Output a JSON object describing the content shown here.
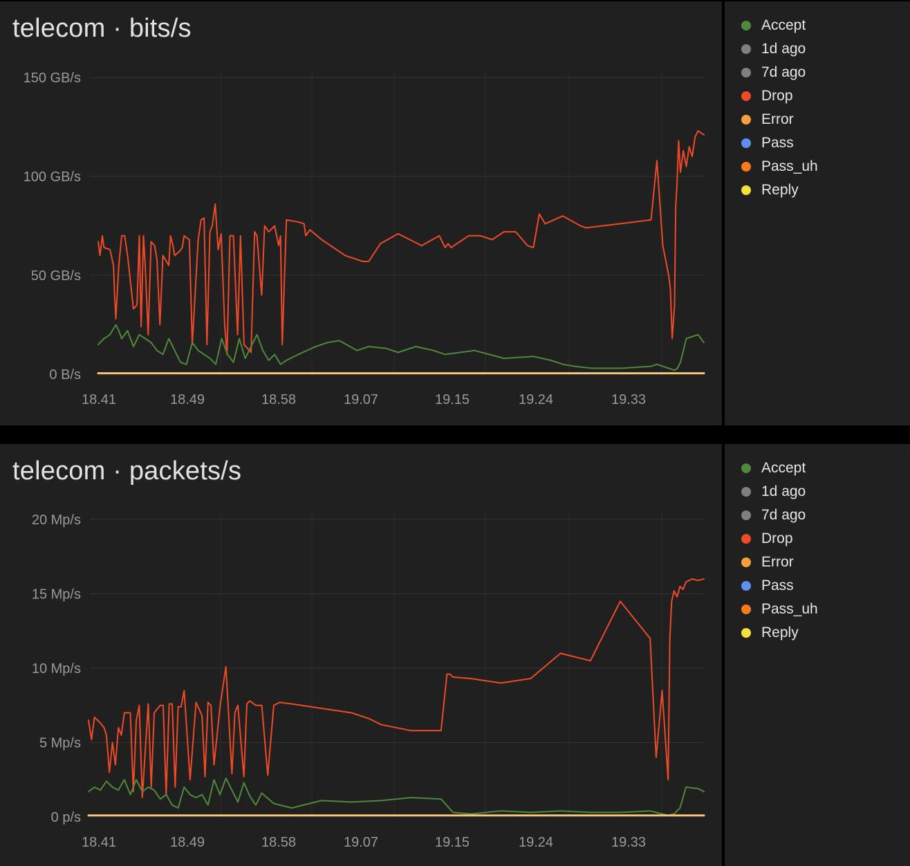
{
  "chart_data": [
    {
      "type": "line",
      "title": "telecom · bits/s",
      "yticks": [
        {
          "v": 0,
          "label": "0 B/s"
        },
        {
          "v": 50,
          "label": "50 GB/s"
        },
        {
          "v": 100,
          "label": "100 GB/s"
        },
        {
          "v": 150,
          "label": "150 GB/s"
        }
      ],
      "ylim": [
        0,
        150
      ],
      "xlim": [
        18.41,
        19.44
      ],
      "xticks": [
        "18.41",
        "18.49",
        "18.58",
        "19.07",
        "19.15",
        "19.24",
        "19.33"
      ],
      "grid": true,
      "legend_position": "right",
      "legend": [
        {
          "name": "Accept",
          "color": "#4e8a3a"
        },
        {
          "name": "1d ago",
          "color": "#808080"
        },
        {
          "name": "7d ago",
          "color": "#808080"
        },
        {
          "name": "Drop",
          "color": "#ef4a28"
        },
        {
          "name": "Error",
          "color": "#f6a03c"
        },
        {
          "name": "Pass",
          "color": "#5f8ff0"
        },
        {
          "name": "Pass_uh",
          "color": "#f77c1c"
        },
        {
          "name": "Reply",
          "color": "#f6e03a"
        }
      ],
      "series": [
        {
          "name": "Drop",
          "color": "#ef4a28",
          "x": [
            18.41,
            18.413,
            18.417,
            18.42,
            18.43,
            18.436,
            18.438,
            18.44,
            18.445,
            18.45,
            18.455,
            18.46,
            18.47,
            18.476,
            18.48,
            18.483,
            18.487,
            18.49,
            18.495,
            18.5,
            18.506,
            18.51,
            18.515,
            18.52,
            18.53,
            18.533,
            18.537,
            18.54,
            18.548,
            18.553,
            18.556,
            18.565,
            18.57,
            18.58,
            18.585,
            18.59,
            18.595,
            18.6,
            18.604,
            18.609,
            18.614,
            18.619,
            18.625,
            18.629,
            18.634,
            18.64,
            18.647,
            18.652,
            18.658,
            18.67,
            18.676,
            18.68,
            18.688,
            18.693,
            18.7,
            18.71,
            18.717,
            18.72,
            18.723,
            18.73,
            18.75,
            18.76,
            18.763,
            18.77,
            18.79,
            18.8,
            18.83,
            18.86,
            18.87,
            18.89,
            18.92,
            18.96,
            18.99,
            19.0,
            19.005,
            19.01,
            19.04,
            19.06,
            19.08,
            19.1,
            19.12,
            19.14,
            19.15,
            19.16,
            19.17,
            19.2,
            19.23,
            19.24,
            19.35,
            19.36,
            19.37,
            19.38,
            19.383,
            19.386,
            19.39,
            19.392,
            19.394,
            19.397,
            19.4,
            19.405,
            19.41,
            19.415,
            19.42,
            19.425,
            19.43,
            19.44
          ],
          "values": [
            67,
            60,
            70,
            64,
            63,
            55,
            40,
            28,
            55,
            70,
            70,
            60,
            33,
            35,
            70,
            24,
            70,
            55,
            20,
            67,
            65,
            58,
            25,
            60,
            55,
            70,
            65,
            60,
            62,
            64,
            70,
            68,
            15,
            68,
            78,
            79,
            15,
            72,
            75,
            86,
            63,
            71,
            25,
            10,
            70,
            70,
            20,
            70,
            15,
            11,
            72,
            70,
            40,
            75,
            72,
            75,
            65,
            70,
            15,
            78,
            77,
            76,
            70,
            73,
            68,
            66,
            60,
            57,
            57,
            66,
            71,
            65,
            70,
            64,
            66,
            64,
            70,
            70,
            68,
            72,
            72,
            65,
            64,
            81,
            76,
            80,
            75,
            74,
            78,
            108,
            65,
            50,
            43,
            18,
            35,
            85,
            95,
            118,
            102,
            113,
            105,
            115,
            110,
            120,
            123,
            121
          ]
        },
        {
          "name": "Accept",
          "color": "#4e8a3a",
          "x": [
            18.41,
            18.42,
            18.43,
            18.44,
            18.445,
            18.45,
            18.46,
            18.47,
            18.48,
            18.49,
            18.5,
            18.51,
            18.52,
            18.53,
            18.54,
            18.55,
            18.56,
            18.57,
            18.58,
            18.59,
            18.6,
            18.61,
            18.62,
            18.63,
            18.64,
            18.65,
            18.66,
            18.67,
            18.68,
            18.69,
            18.7,
            18.71,
            18.72,
            18.73,
            18.75,
            18.78,
            18.8,
            18.82,
            18.85,
            18.87,
            18.9,
            18.92,
            18.95,
            18.98,
            19.0,
            19.05,
            19.1,
            19.15,
            19.18,
            19.2,
            19.22,
            19.25,
            19.3,
            19.35,
            19.36,
            19.38,
            19.39,
            19.395,
            19.4,
            19.41,
            19.43,
            19.44
          ],
          "values": [
            15,
            18,
            20,
            25,
            22,
            18,
            22,
            14,
            20,
            18,
            16,
            12,
            10,
            18,
            12,
            6,
            5,
            16,
            12,
            10,
            8,
            5,
            18,
            10,
            6,
            18,
            8,
            14,
            20,
            12,
            7,
            10,
            5,
            7,
            10,
            14,
            16,
            17,
            12,
            14,
            13,
            11,
            14,
            12,
            10,
            12,
            8,
            9,
            7,
            5,
            4,
            3,
            3,
            4,
            5,
            3,
            2,
            3,
            6,
            18,
            20,
            16
          ]
        },
        {
          "name": "Reply",
          "color": "#f6c47a",
          "x": [
            18.41,
            19.44
          ],
          "values": [
            0.5,
            0.5
          ]
        }
      ]
    },
    {
      "type": "line",
      "title": "telecom · packets/s",
      "yticks": [
        {
          "v": 0,
          "label": "0 p/s"
        },
        {
          "v": 5,
          "label": "5 Mp/s"
        },
        {
          "v": 10,
          "label": "10 Mp/s"
        },
        {
          "v": 15,
          "label": "15 Mp/s"
        },
        {
          "v": 20,
          "label": "20 Mp/s"
        }
      ],
      "ylim": [
        0,
        20
      ],
      "xlim": [
        18.41,
        19.44
      ],
      "xticks": [
        "18.41",
        "18.49",
        "18.58",
        "19.07",
        "19.15",
        "19.24",
        "19.33"
      ],
      "grid": true,
      "legend_position": "right",
      "legend": [
        {
          "name": "Accept",
          "color": "#4e8a3a"
        },
        {
          "name": "1d ago",
          "color": "#808080"
        },
        {
          "name": "7d ago",
          "color": "#808080"
        },
        {
          "name": "Drop",
          "color": "#ef4a28"
        },
        {
          "name": "Error",
          "color": "#f6a03c"
        },
        {
          "name": "Pass",
          "color": "#5f8ff0"
        },
        {
          "name": "Pass_uh",
          "color": "#f77c1c"
        },
        {
          "name": "Reply",
          "color": "#f6e03a"
        }
      ],
      "series": [
        {
          "name": "Drop",
          "color": "#ef4a28",
          "x": [
            18.41,
            18.415,
            18.42,
            18.43,
            18.436,
            18.44,
            18.445,
            18.45,
            18.455,
            18.46,
            18.465,
            18.47,
            18.48,
            18.485,
            18.49,
            18.495,
            18.5,
            18.51,
            18.515,
            18.52,
            18.53,
            18.535,
            18.54,
            18.545,
            18.55,
            18.555,
            18.56,
            18.565,
            18.57,
            18.58,
            18.59,
            18.6,
            18.605,
            18.61,
            18.615,
            18.62,
            18.63,
            18.64,
            18.65,
            18.655,
            18.66,
            18.67,
            18.675,
            18.68,
            18.69,
            18.7,
            18.71,
            18.72,
            18.725,
            18.73,
            18.75,
            18.8,
            18.85,
            18.88,
            18.9,
            18.95,
            19.0,
            19.01,
            19.015,
            19.02,
            19.05,
            19.1,
            19.15,
            19.2,
            19.25,
            19.3,
            19.35,
            19.36,
            19.37,
            19.38,
            19.383,
            19.386,
            19.39,
            19.395,
            19.4,
            19.405,
            19.41,
            19.42,
            19.43,
            19.44
          ],
          "values": [
            6.5,
            5.2,
            6.7,
            6.3,
            6.0,
            5.5,
            3.0,
            5.0,
            3.5,
            6.0,
            5.5,
            7.0,
            7.0,
            1.7,
            6.5,
            7.5,
            1.3,
            7.6,
            2.0,
            7.0,
            7.5,
            7.5,
            1.5,
            7.6,
            7.6,
            2.0,
            7.4,
            7.4,
            8.5,
            2.5,
            7.7,
            6.8,
            2.7,
            7.7,
            7.5,
            3.5,
            7.4,
            10.1,
            2.9,
            7.0,
            7.5,
            2.7,
            7.6,
            7.8,
            7.5,
            7.5,
            2.8,
            7.5,
            7.6,
            7.7,
            7.6,
            7.3,
            7.0,
            6.6,
            6.2,
            5.8,
            5.8,
            9.6,
            9.6,
            9.4,
            9.3,
            9.0,
            9.3,
            11.0,
            10.5,
            14.5,
            12.0,
            4.0,
            8.5,
            2.5,
            12.0,
            14.5,
            15.2,
            14.8,
            15.5,
            15.3,
            15.8,
            16.0,
            15.9,
            16.0
          ]
        },
        {
          "name": "Accept",
          "color": "#4e8a3a",
          "x": [
            18.41,
            18.42,
            18.43,
            18.44,
            18.45,
            18.46,
            18.47,
            18.48,
            18.49,
            18.5,
            18.51,
            18.52,
            18.53,
            18.54,
            18.55,
            18.56,
            18.57,
            18.58,
            18.59,
            18.6,
            18.61,
            18.62,
            18.63,
            18.64,
            18.65,
            18.66,
            18.67,
            18.68,
            18.69,
            18.7,
            18.72,
            18.75,
            18.8,
            18.85,
            18.9,
            18.95,
            19.0,
            19.02,
            19.05,
            19.1,
            19.15,
            19.2,
            19.25,
            19.3,
            19.35,
            19.36,
            19.38,
            19.39,
            19.4,
            19.41,
            19.43,
            19.44
          ],
          "values": [
            1.7,
            2.0,
            1.8,
            2.4,
            2.0,
            1.8,
            2.5,
            1.5,
            2.5,
            1.7,
            2.0,
            1.8,
            1.2,
            1.5,
            0.8,
            0.6,
            2.0,
            1.5,
            1.3,
            1.5,
            0.8,
            2.5,
            1.5,
            2.6,
            1.8,
            1.0,
            2.3,
            1.4,
            0.8,
            1.6,
            0.9,
            0.6,
            1.1,
            1.0,
            1.1,
            1.3,
            1.2,
            0.3,
            0.2,
            0.4,
            0.3,
            0.4,
            0.3,
            0.3,
            0.4,
            0.3,
            0.1,
            0.2,
            0.6,
            2.0,
            1.9,
            1.7
          ]
        },
        {
          "name": "Reply",
          "color": "#f6c47a",
          "x": [
            18.41,
            19.44
          ],
          "values": [
            0.1,
            0.1
          ]
        }
      ]
    }
  ]
}
